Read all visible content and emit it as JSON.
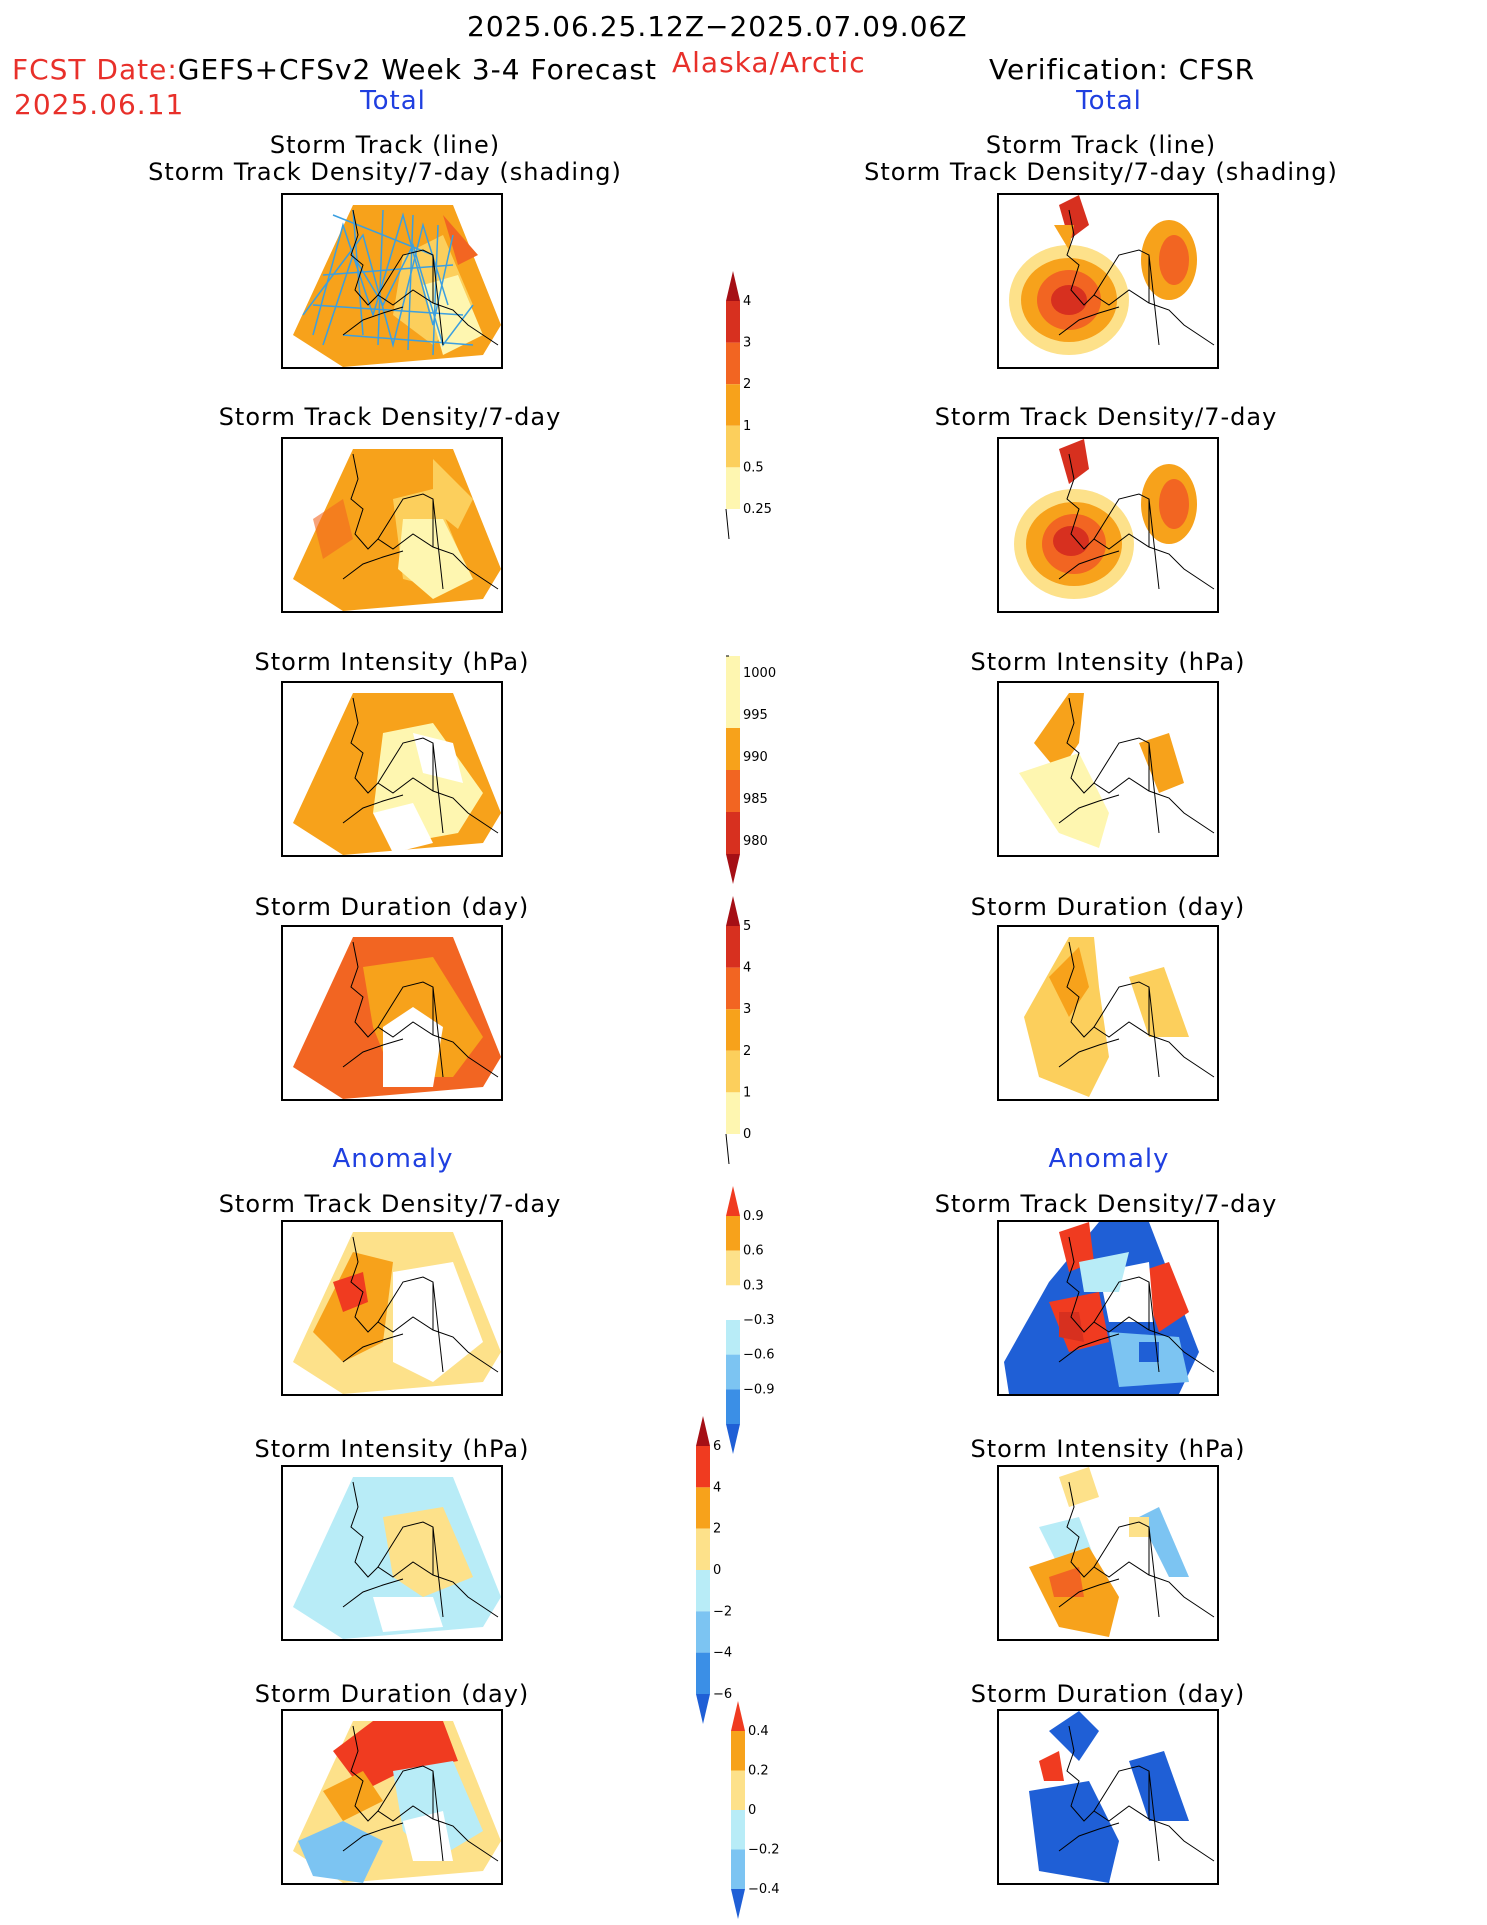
{
  "header": {
    "period": "2025.06.25.12Z−2025.07.09.06Z",
    "fcst_date_label": "FCST Date:",
    "fcst_model": "GEFS+CFSv2 Week 3-4 Forecast",
    "region": "Alaska/Arctic",
    "verification": "Verification: CFSR",
    "fcst_date": "2025.06.11"
  },
  "columns": {
    "left_total": "Total",
    "right_total": "Total",
    "left_anomaly": "Anomaly",
    "right_anomaly": "Anomaly"
  },
  "panel_titles": {
    "track_line": "Storm Track (line)",
    "track_density_shading": "Storm Track Density/7-day (shading)",
    "track_density": "Storm Track Density/7-day",
    "intensity": "Storm Intensity (hPa)",
    "duration": "Storm Duration (day)"
  },
  "colorbars": {
    "density": {
      "labels": [
        "4",
        "3",
        "2",
        "1",
        "0.5",
        "0.25"
      ],
      "colors": [
        "#a50f15",
        "#d7301f",
        "#f26522",
        "#f7a21b",
        "#fccf5c",
        "#fef6b0"
      ]
    },
    "intensity": {
      "labels": [
        "1000",
        "995",
        "990",
        "985",
        "980"
      ],
      "colors": [
        "#fef6b0",
        "#f7a21b",
        "#f26522",
        "#d7301f",
        "#a50f15"
      ]
    },
    "duration": {
      "labels": [
        "5",
        "4",
        "3",
        "2",
        "1",
        "0"
      ],
      "colors": [
        "#a50f15",
        "#d7301f",
        "#f26522",
        "#f7a21b",
        "#fccf5c",
        "#fef6b0"
      ]
    },
    "density_anom": {
      "labels": [
        "0.9",
        "0.6",
        "0.3",
        "−0.3",
        "−0.6",
        "−0.9"
      ],
      "colors": [
        "#f03b20",
        "#f7a21b",
        "#fde18a",
        "#ffffff",
        "#b8ecf7",
        "#7cc4f2",
        "#3b8fe6",
        "#1f5fd6"
      ]
    },
    "intensity_anom": {
      "labels": [
        "6",
        "4",
        "2",
        "0",
        "−2",
        "−4",
        "−6"
      ],
      "colors": [
        "#a50f15",
        "#f03b20",
        "#f7a21b",
        "#fde18a",
        "#b8ecf7",
        "#7cc4f2",
        "#3b8fe6",
        "#1f5fd6"
      ]
    },
    "duration_anom": {
      "labels": [
        "0.4",
        "0.2",
        "0",
        "−0.2",
        "−0.4"
      ],
      "colors": [
        "#f03b20",
        "#f7a21b",
        "#fde18a",
        "#b8ecf7",
        "#7cc4f2",
        "#1f5fd6"
      ]
    }
  }
}
